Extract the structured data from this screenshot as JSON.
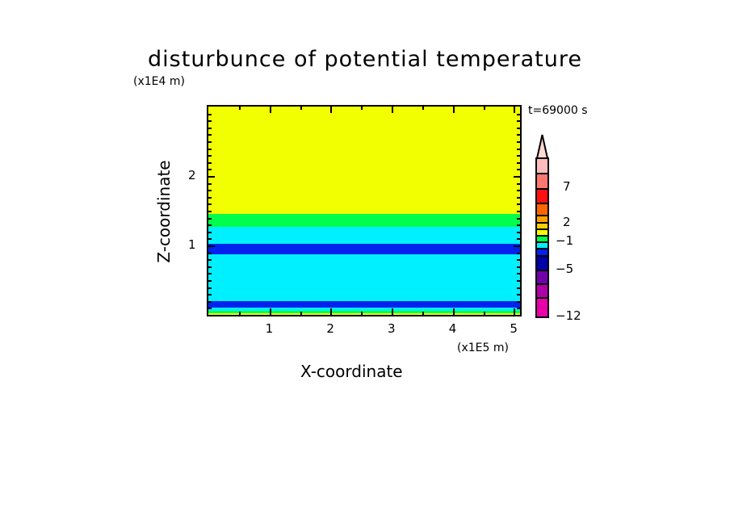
{
  "chart_data": {
    "type": "heatmap",
    "title": "disturbunce of potential temperature",
    "xlabel": "X-coordinate",
    "ylabel": "Z-coordinate",
    "x_unit": "(x1E5 m)",
    "y_unit": "(x1E4 m)",
    "time_label": "t=69000 s",
    "xlim": [
      0,
      5.1
    ],
    "ylim": [
      0,
      3.0
    ],
    "xticks": [
      "1",
      "2",
      "3",
      "4",
      "5"
    ],
    "yticks": [
      "1",
      "2"
    ],
    "layers": [
      {
        "z_range": [
          1.45,
          3.0
        ],
        "color": "#f2ff00"
      },
      {
        "z_range": [
          1.27,
          1.45
        ],
        "color": "#00ff4d"
      },
      {
        "z_range": [
          1.02,
          1.27
        ],
        "color": "#00f0ff"
      },
      {
        "z_range": [
          0.87,
          1.02
        ],
        "color": "#0022ee"
      },
      {
        "z_range": [
          0.2,
          0.87
        ],
        "color": "#00f0ff"
      },
      {
        "z_range": [
          0.1,
          0.2
        ],
        "color": "#0022ee"
      },
      {
        "z_range": [
          0.06,
          0.1
        ],
        "color": "#00f0ff"
      },
      {
        "z_range": [
          0.02,
          0.06
        ],
        "color": "#00ff4d"
      },
      {
        "z_range": [
          0,
          0.02
        ],
        "color": "#f2ff00"
      }
    ],
    "colorbar": {
      "labels": [
        "7",
        "2",
        "−1",
        "−5",
        "−12"
      ],
      "colors": [
        "#ffd8d0",
        "#ffbcbc",
        "#ff7870",
        "#ff1010",
        "#ff6600",
        "#ffa000",
        "#ffcc00",
        "#f2ff00",
        "#00ff4d",
        "#00f0ff",
        "#0022ee",
        "#0000a8",
        "#7000a8",
        "#b000a8",
        "#e800a8"
      ]
    }
  }
}
